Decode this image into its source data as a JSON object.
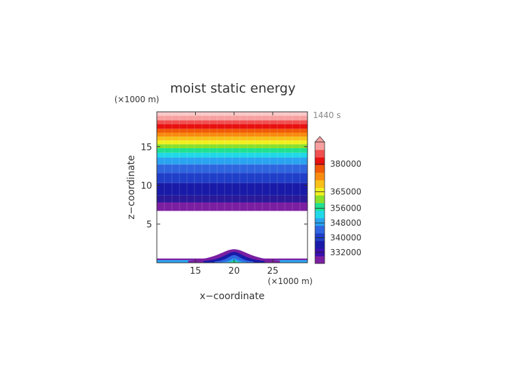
{
  "figure": {
    "title": "moist static energy",
    "time_label": "1440 s"
  },
  "chart_data": {
    "type": "heatmap",
    "title": "moist static energy",
    "xlabel": "x−coordinate",
    "ylabel": "z−coordinate",
    "x_unit_label": "(×1000 m)",
    "y_unit_label": "(×1000 m)",
    "xlim": [
      10,
      29.5
    ],
    "ylim": [
      0,
      19.5
    ],
    "xticks": [
      15,
      20,
      25
    ],
    "yticks": [
      5,
      10,
      15
    ],
    "colorbar": {
      "labels": [
        {
          "value": 332000,
          "text": "332000"
        },
        {
          "value": 340000,
          "text": "340000"
        },
        {
          "value": 348000,
          "text": "348000"
        },
        {
          "value": 356000,
          "text": "356000"
        },
        {
          "value": 365000,
          "text": "365000"
        },
        {
          "value": 380000,
          "text": "380000"
        }
      ],
      "colors": [
        "#7b1fa2",
        "#3a0fb0",
        "#1a1aa8",
        "#1f3fc8",
        "#2f66e0",
        "#2aa3f0",
        "#20d8e8",
        "#20e090",
        "#8ae02a",
        "#f0f020",
        "#f8c018",
        "#f88c10",
        "#f05a08",
        "#e81010",
        "#f05050",
        "#f8a0a0"
      ],
      "extend": "max"
    },
    "layer_bands": [
      {
        "z_bottom": 19.0,
        "z_top": 19.5,
        "color": "#f8c8c8"
      },
      {
        "z_bottom": 18.4,
        "z_top": 19.0,
        "color": "#f8a0a0"
      },
      {
        "z_bottom": 17.9,
        "z_top": 18.4,
        "color": "#f05050"
      },
      {
        "z_bottom": 17.3,
        "z_top": 17.9,
        "color": "#e81010"
      },
      {
        "z_bottom": 16.8,
        "z_top": 17.3,
        "color": "#f05a08"
      },
      {
        "z_bottom": 16.3,
        "z_top": 16.8,
        "color": "#f88c10"
      },
      {
        "z_bottom": 15.8,
        "z_top": 16.3,
        "color": "#f8c018"
      },
      {
        "z_bottom": 15.3,
        "z_top": 15.8,
        "color": "#f0f020"
      },
      {
        "z_bottom": 14.8,
        "z_top": 15.3,
        "color": "#8ae02a"
      },
      {
        "z_bottom": 14.2,
        "z_top": 14.8,
        "color": "#20e090"
      },
      {
        "z_bottom": 13.6,
        "z_top": 14.2,
        "color": "#20d8e8"
      },
      {
        "z_bottom": 12.7,
        "z_top": 13.6,
        "color": "#2aa3f0"
      },
      {
        "z_bottom": 11.6,
        "z_top": 12.7,
        "color": "#2f66e0"
      },
      {
        "z_bottom": 10.3,
        "z_top": 11.6,
        "color": "#1f3fc8"
      },
      {
        "z_bottom": 8.7,
        "z_top": 10.3,
        "color": "#1a1aa8"
      },
      {
        "z_bottom": 7.8,
        "z_top": 8.7,
        "color": "#2a1a9a"
      },
      {
        "z_bottom": 6.7,
        "z_top": 7.8,
        "color": "#7b1fa2"
      }
    ],
    "mountain": {
      "center_x": 20,
      "layers": [
        {
          "height": 1.75,
          "half_width": 3.3,
          "color": "#7b1fa2"
        },
        {
          "height": 1.4,
          "half_width": 2.2,
          "color": "#1a1aa8"
        },
        {
          "height": 1.0,
          "half_width": 1.4,
          "color": "#2f66e0"
        },
        {
          "height": 0.55,
          "half_width": 0.9,
          "color": "#2aa3f0"
        },
        {
          "height": 0.3,
          "half_width": 0.5,
          "color": "#20e090"
        }
      ],
      "base_strip_color": "#2aa3f0",
      "base_strip_top_color": "#7b1fa2"
    }
  }
}
